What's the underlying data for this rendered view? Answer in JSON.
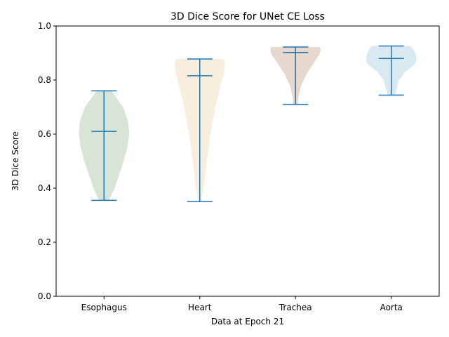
{
  "chart_data": {
    "type": "violin",
    "title": "3D Dice Score for UNet CE Loss",
    "xlabel": "Data at Epoch 21",
    "ylabel": "3D Dice Score",
    "ylim": [
      0.0,
      1.0
    ],
    "yticks": [
      "0.0",
      "0.2",
      "0.4",
      "0.6",
      "0.8",
      "1.0"
    ],
    "categories": [
      "Esophagus",
      "Heart",
      "Trachea",
      "Aorta"
    ],
    "line_color": "#1f77b4",
    "violins": [
      {
        "category": "Esophagus",
        "min": 0.355,
        "median": 0.61,
        "max": 0.76,
        "fill": "#d8e4d6",
        "density": [
          [
            0.355,
            0.2
          ],
          [
            0.4,
            0.42
          ],
          [
            0.45,
            0.6
          ],
          [
            0.5,
            0.78
          ],
          [
            0.55,
            0.92
          ],
          [
            0.6,
            1.0
          ],
          [
            0.65,
            0.95
          ],
          [
            0.7,
            0.75
          ],
          [
            0.74,
            0.45
          ],
          [
            0.76,
            0.28
          ]
        ]
      },
      {
        "category": "Heart",
        "min": 0.35,
        "median": 0.816,
        "max": 0.878,
        "fill": "#f7eedd",
        "density": [
          [
            0.35,
            0.05
          ],
          [
            0.4,
            0.15
          ],
          [
            0.5,
            0.28
          ],
          [
            0.6,
            0.42
          ],
          [
            0.7,
            0.62
          ],
          [
            0.78,
            0.82
          ],
          [
            0.82,
            0.95
          ],
          [
            0.86,
            1.0
          ],
          [
            0.878,
            0.95
          ]
        ]
      },
      {
        "category": "Trachea",
        "min": 0.71,
        "median": 0.902,
        "max": 0.922,
        "fill": "#e6d7cf",
        "density": [
          [
            0.71,
            0.08
          ],
          [
            0.74,
            0.12
          ],
          [
            0.78,
            0.22
          ],
          [
            0.82,
            0.42
          ],
          [
            0.86,
            0.7
          ],
          [
            0.89,
            0.92
          ],
          [
            0.91,
            1.0
          ],
          [
            0.922,
            0.96
          ]
        ]
      },
      {
        "category": "Aorta",
        "min": 0.744,
        "median": 0.88,
        "max": 0.926,
        "fill": "#d8e9f1",
        "density": [
          [
            0.744,
            0.15
          ],
          [
            0.77,
            0.22
          ],
          [
            0.8,
            0.3
          ],
          [
            0.83,
            0.55
          ],
          [
            0.86,
            0.95
          ],
          [
            0.88,
            1.0
          ],
          [
            0.9,
            0.95
          ],
          [
            0.926,
            0.78
          ]
        ]
      }
    ]
  }
}
